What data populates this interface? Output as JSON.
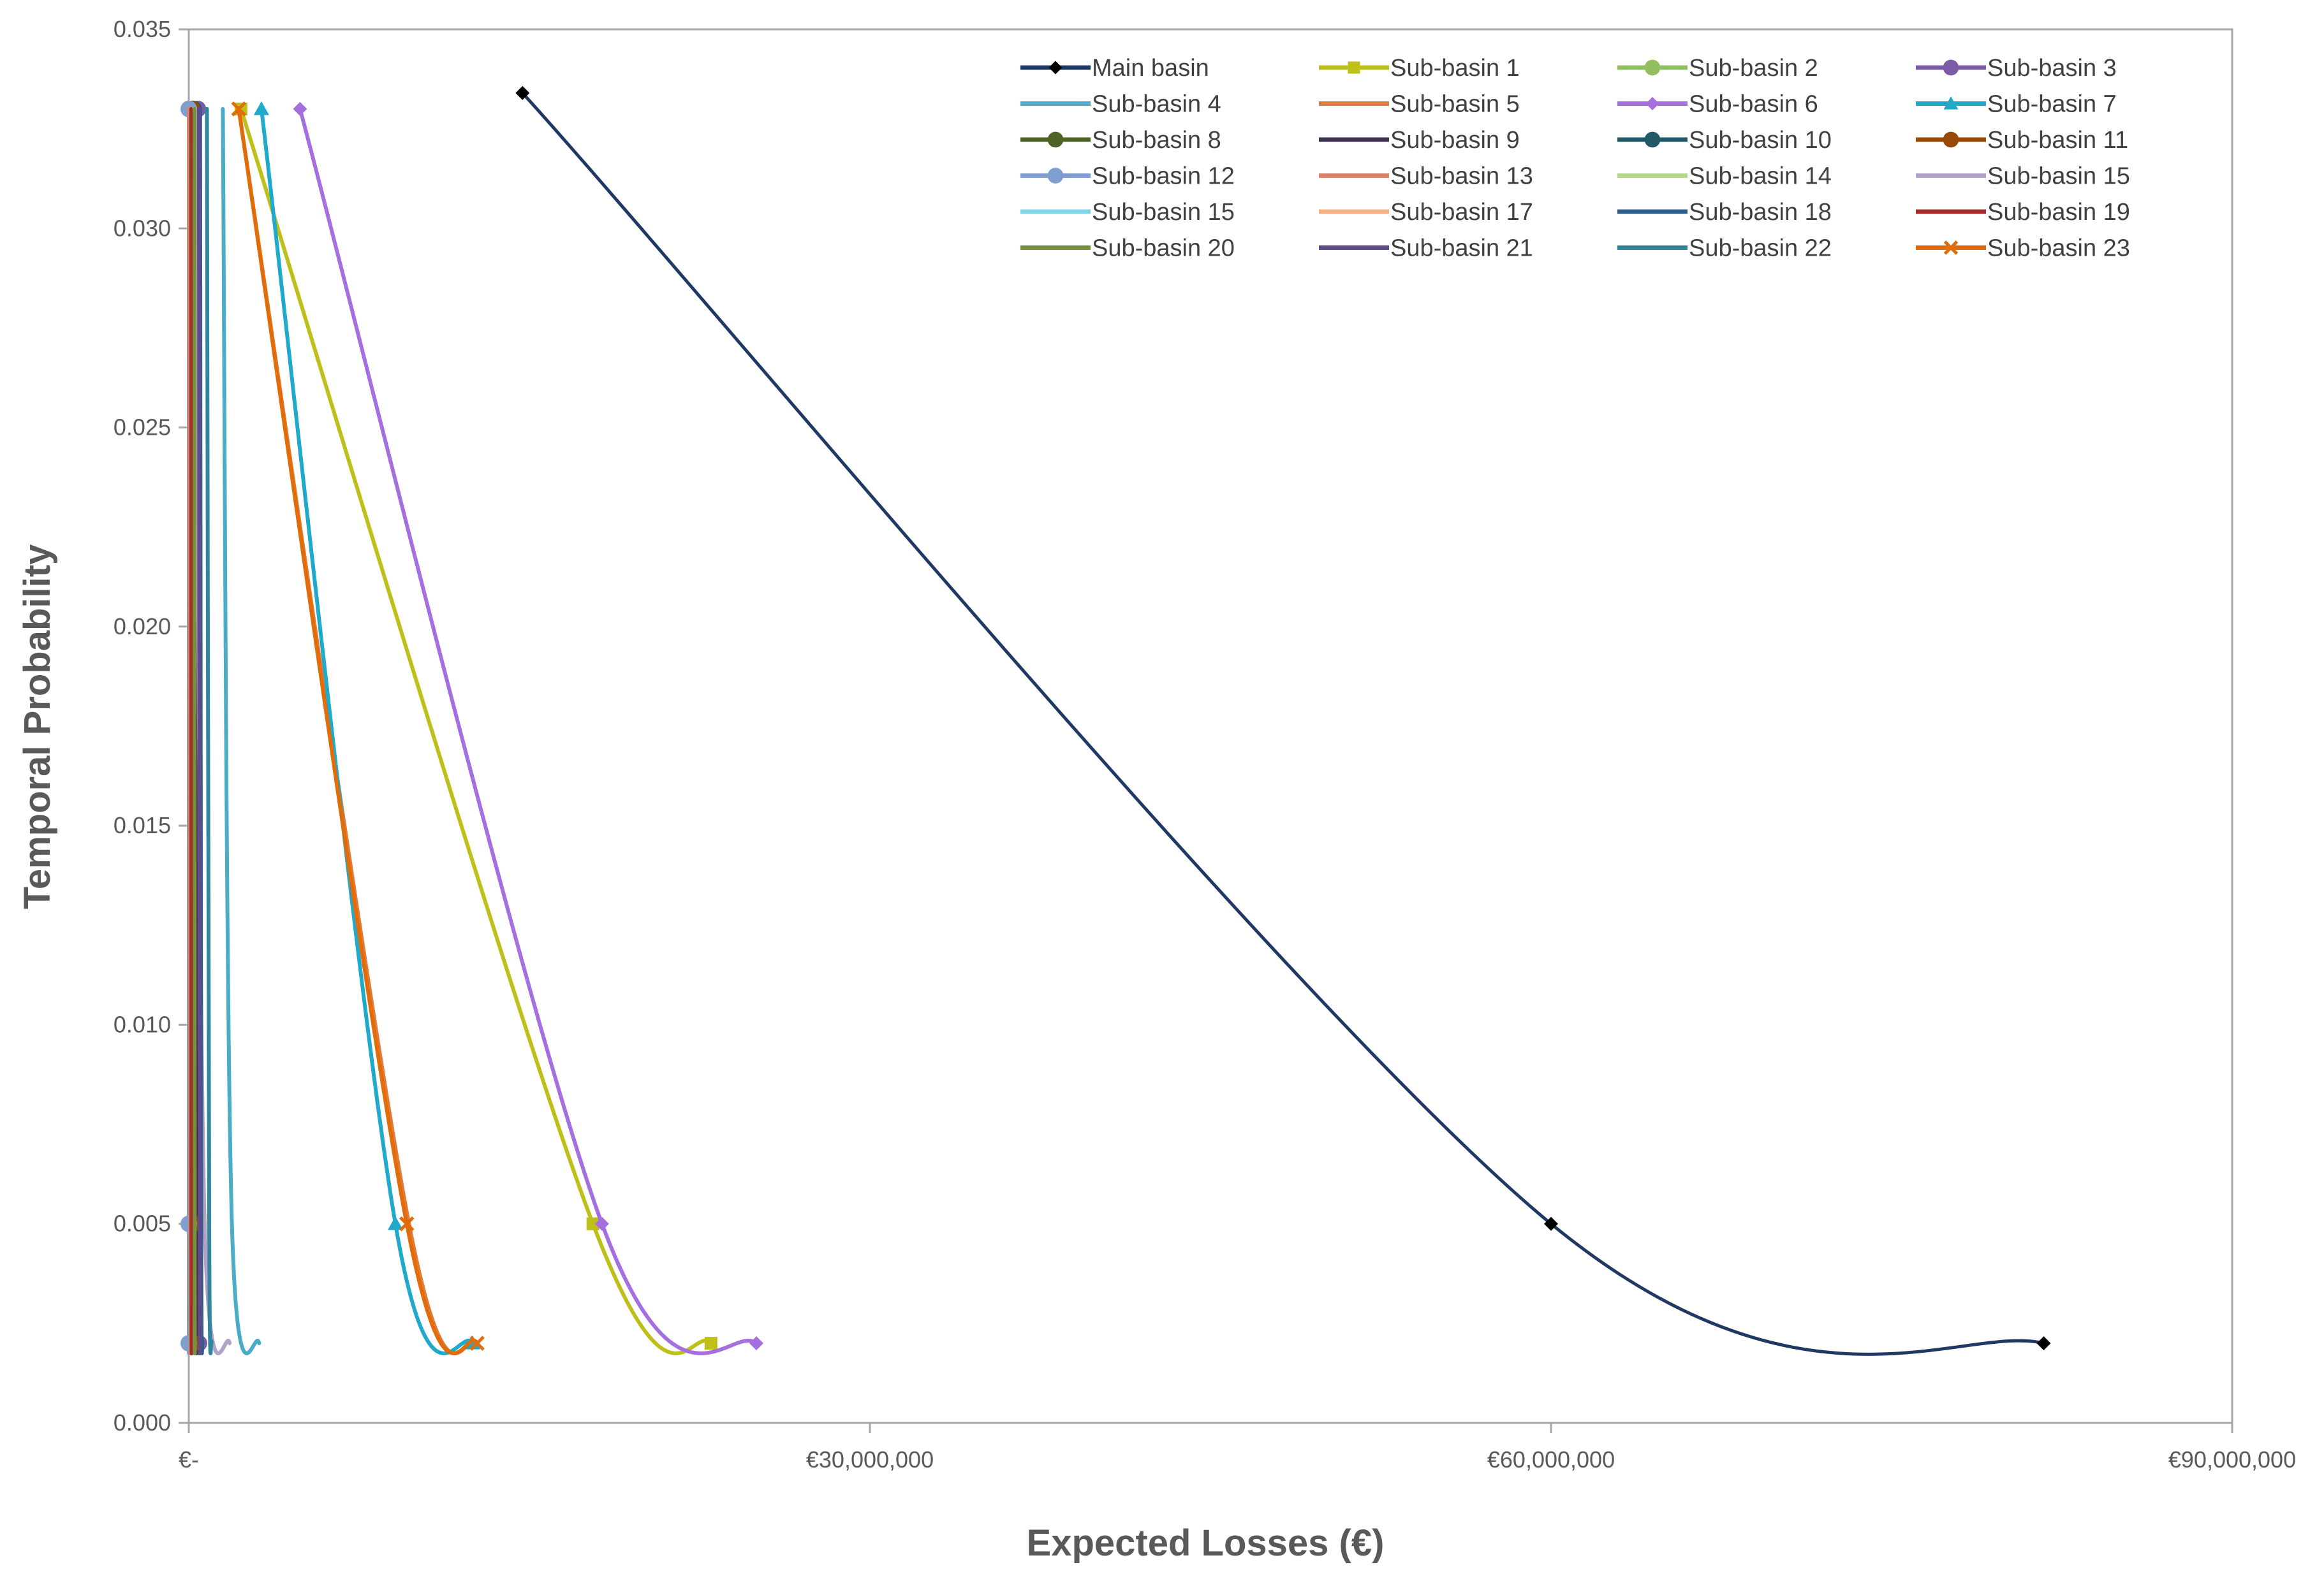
{
  "chart_data": {
    "type": "line",
    "title": "",
    "xlabel": "Expected Losses (€)",
    "ylabel": "Temporal Probability",
    "xlim": [
      0,
      90000000
    ],
    "ylim": [
      0,
      0.035
    ],
    "x_ticks": [
      0,
      30000000,
      60000000,
      90000000
    ],
    "x_tick_labels": [
      "€-",
      "€30,000,000",
      "€60,000,000",
      "€90,000,000"
    ],
    "y_ticks": [
      0,
      0.005,
      0.01,
      0.015,
      0.02,
      0.025,
      0.03,
      0.035
    ],
    "y_tick_labels": [
      "0.000",
      "0.005",
      "0.010",
      "0.015",
      "0.020",
      "0.025",
      "0.030",
      "0.035"
    ],
    "grid": false,
    "legend_position": "top-right",
    "legend_columns": 4,
    "series": [
      {
        "name": "Main basin",
        "color": "#1F3864",
        "marker_color": "#000000",
        "marker": "diamond",
        "points": [
          [
            14700000,
            0.0334
          ],
          [
            60000000,
            0.005
          ],
          [
            81700000,
            0.002
          ]
        ]
      },
      {
        "name": "Sub-basin 1",
        "color": "#BFBF1A",
        "marker": "square",
        "points": [
          [
            2300000,
            0.033
          ],
          [
            17800000,
            0.005
          ],
          [
            23000000,
            0.002
          ]
        ]
      },
      {
        "name": "Sub-basin 2",
        "color": "#92C060",
        "marker": "circle",
        "points": [
          [
            150000,
            0.033
          ],
          [
            120000,
            0.005
          ],
          [
            100000,
            0.002
          ]
        ]
      },
      {
        "name": "Sub-basin 3",
        "color": "#7B5AA6",
        "marker": "circle",
        "points": [
          [
            400000,
            0.033
          ],
          [
            420000,
            0.005
          ],
          [
            450000,
            0.002
          ]
        ]
      },
      {
        "name": "Sub-basin 4",
        "color": "#4BACC6",
        "marker": "none",
        "points": [
          [
            1500000,
            0.033
          ],
          [
            1900000,
            0.005
          ],
          [
            3100000,
            0.002
          ]
        ]
      },
      {
        "name": "Sub-basin 5",
        "color": "#E07B39",
        "marker": "none",
        "points": [
          [
            2200000,
            0.033
          ],
          [
            9700000,
            0.005
          ],
          [
            12700000,
            0.002
          ]
        ]
      },
      {
        "name": "Sub-basin 6",
        "color": "#A66FE0",
        "marker": "diamond",
        "points": [
          [
            4900000,
            0.033
          ],
          [
            18200000,
            0.005
          ],
          [
            25000000,
            0.002
          ]
        ]
      },
      {
        "name": "Sub-basin 7",
        "color": "#1FAACB",
        "marker": "triangle",
        "points": [
          [
            3200000,
            0.033
          ],
          [
            9100000,
            0.005
          ],
          [
            12500000,
            0.002
          ]
        ]
      },
      {
        "name": "Sub-basin 8",
        "color": "#4F6228",
        "marker": "circle",
        "points": [
          [
            100000,
            0.033
          ],
          [
            100000,
            0.005
          ],
          [
            110000,
            0.002
          ]
        ]
      },
      {
        "name": "Sub-basin 9",
        "color": "#3F3151",
        "marker": "none",
        "points": [
          [
            300000,
            0.033
          ],
          [
            320000,
            0.005
          ],
          [
            350000,
            0.002
          ]
        ]
      },
      {
        "name": "Sub-basin 10",
        "color": "#215967",
        "marker": "circle",
        "points": [
          [
            200000,
            0.033
          ],
          [
            210000,
            0.005
          ],
          [
            230000,
            0.002
          ]
        ]
      },
      {
        "name": "Sub-basin 11",
        "color": "#984807",
        "marker": "circle",
        "points": [
          [
            150000,
            0.033
          ],
          [
            160000,
            0.005
          ],
          [
            170000,
            0.002
          ]
        ]
      },
      {
        "name": "Sub-basin 12",
        "color": "#7F9FCF",
        "marker": "circle",
        "points": [
          [
            0,
            0.033
          ],
          [
            0,
            0.005
          ],
          [
            0,
            0.002
          ]
        ]
      },
      {
        "name": "Sub-basin 13",
        "color": "#D9826E",
        "marker": "none",
        "points": [
          [
            0,
            0.033
          ],
          [
            50000,
            0.005
          ],
          [
            80000,
            0.002
          ]
        ]
      },
      {
        "name": "Sub-basin 14",
        "color": "#B5D68C",
        "marker": "none",
        "points": [
          [
            80000,
            0.033
          ],
          [
            90000,
            0.005
          ],
          [
            100000,
            0.002
          ]
        ]
      },
      {
        "name": "Sub-basin 15",
        "color": "#B3A2C7",
        "marker": "none",
        "points": [
          [
            300000,
            0.033
          ],
          [
            700000,
            0.005
          ],
          [
            1800000,
            0.002
          ]
        ]
      },
      {
        "name": "Sub-basin 15",
        "color": "#7FD3E6",
        "marker": "none",
        "points": [
          [
            100000,
            0.033
          ],
          [
            110000,
            0.005
          ],
          [
            120000,
            0.002
          ]
        ]
      },
      {
        "name": "Sub-basin 17",
        "color": "#F4B183",
        "marker": "none",
        "points": [
          [
            200000,
            0.033
          ],
          [
            210000,
            0.005
          ],
          [
            220000,
            0.002
          ]
        ]
      },
      {
        "name": "Sub-basin 18",
        "color": "#2E5F8A",
        "marker": "none",
        "points": [
          [
            500000,
            0.033
          ],
          [
            550000,
            0.005
          ],
          [
            600000,
            0.002
          ]
        ]
      },
      {
        "name": "Sub-basin 19",
        "color": "#A52A2A",
        "marker": "none",
        "points": [
          [
            100000,
            0.033
          ],
          [
            110000,
            0.005
          ],
          [
            120000,
            0.002
          ]
        ]
      },
      {
        "name": "Sub-basin 20",
        "color": "#76923C",
        "marker": "none",
        "points": [
          [
            250000,
            0.033
          ],
          [
            260000,
            0.005
          ],
          [
            270000,
            0.002
          ]
        ]
      },
      {
        "name": "Sub-basin 21",
        "color": "#5F4B8B",
        "marker": "none",
        "points": [
          [
            450000,
            0.033
          ],
          [
            480000,
            0.005
          ],
          [
            500000,
            0.002
          ]
        ]
      },
      {
        "name": "Sub-basin 22",
        "color": "#31859C",
        "marker": "none",
        "points": [
          [
            800000,
            0.033
          ],
          [
            900000,
            0.005
          ],
          [
            1000000,
            0.002
          ]
        ]
      },
      {
        "name": "Sub-basin 23",
        "color": "#E36C0A",
        "marker": "x",
        "points": [
          [
            2200000,
            0.033
          ],
          [
            9600000,
            0.005
          ],
          [
            12700000,
            0.002
          ]
        ]
      }
    ]
  }
}
